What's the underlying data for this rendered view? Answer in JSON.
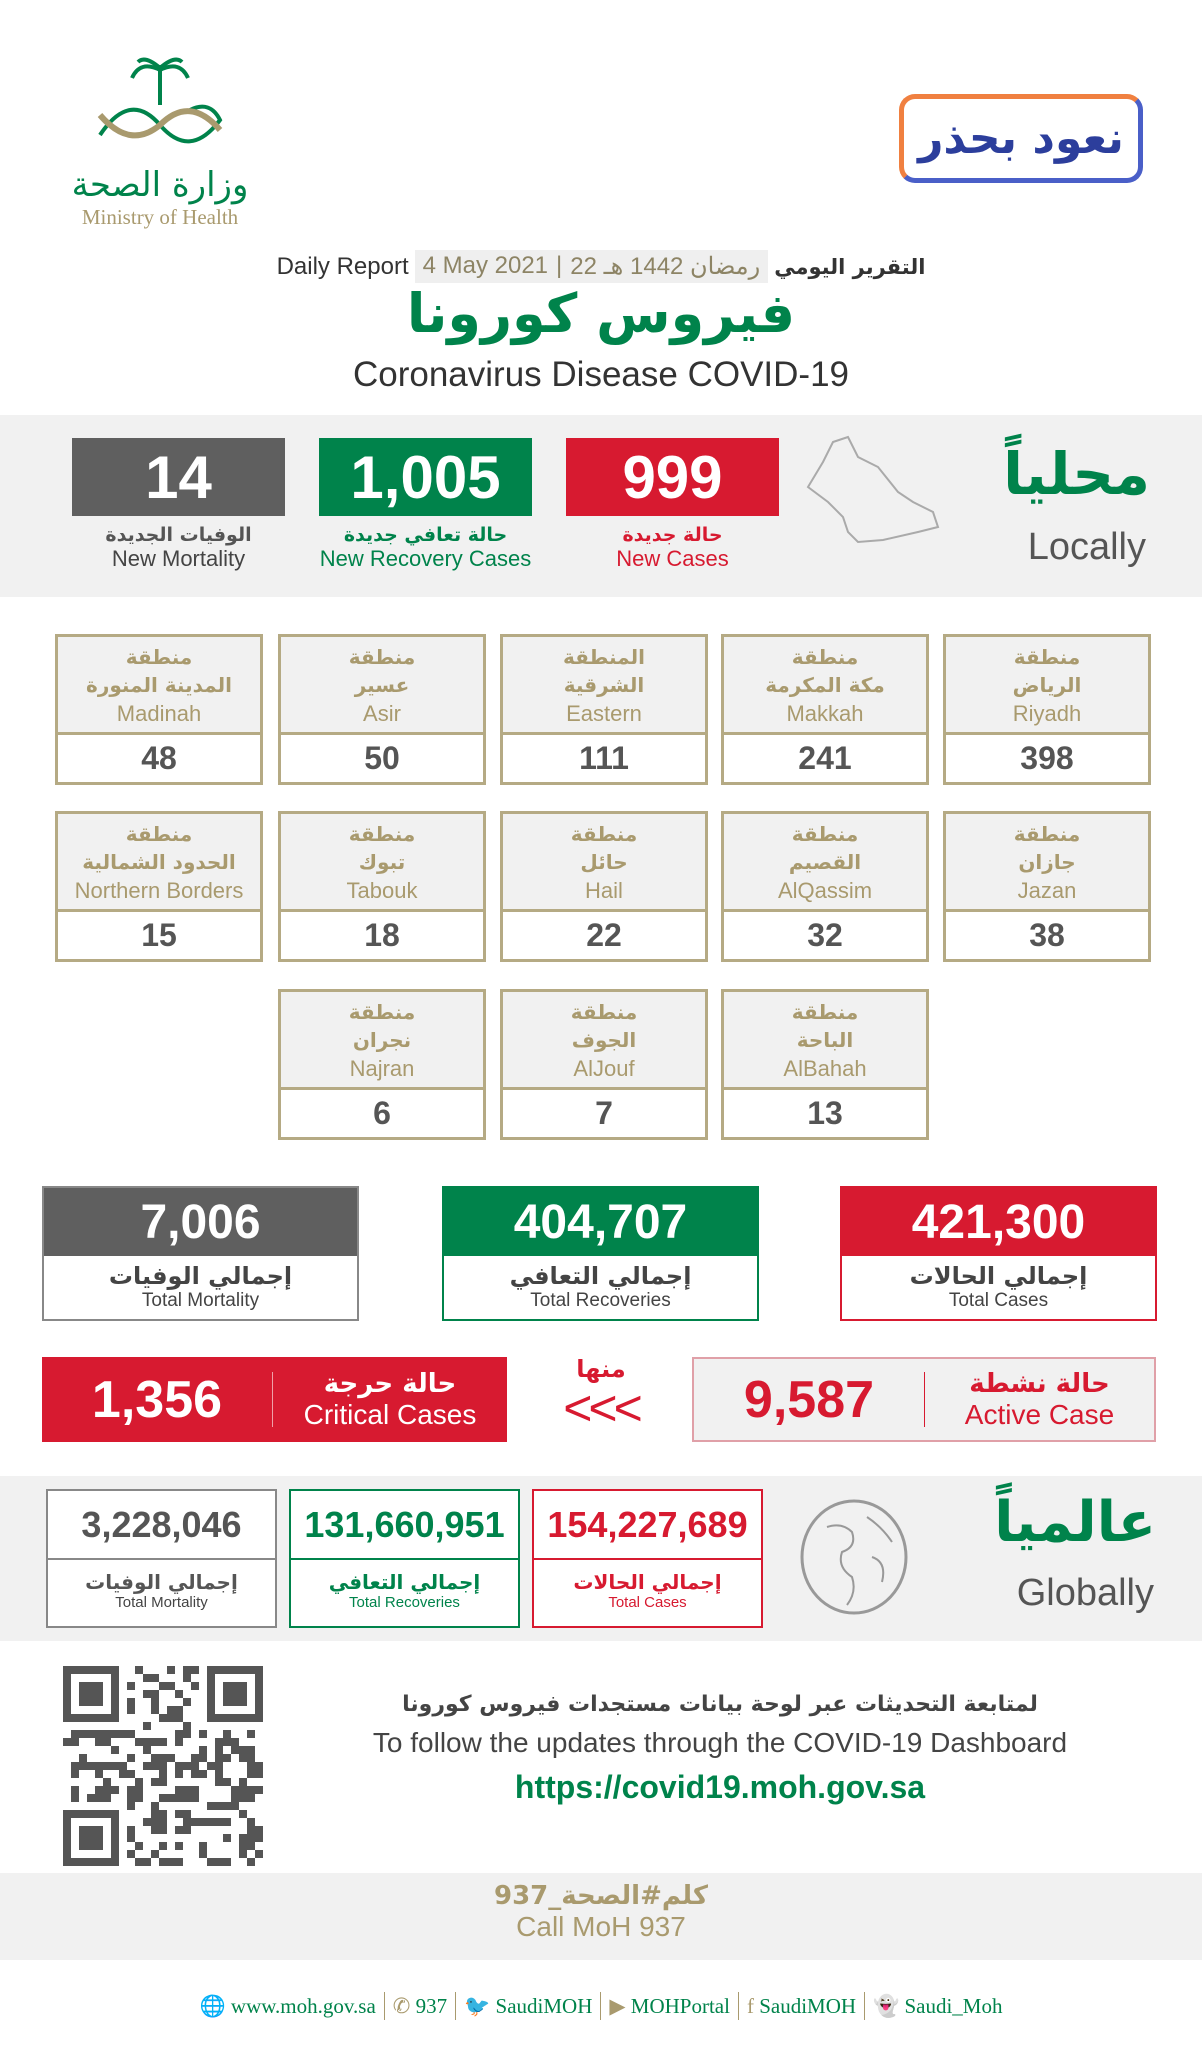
{
  "header": {
    "logo_ar": "وزارة الصحة",
    "logo_en": "Ministry of Health",
    "slogan_ar": "نعود بحذر",
    "daily_report_ar": "التقرير اليومي",
    "hijri_date": "22 رمضان 1442 هـ",
    "date": "4 May 2021",
    "daily_report_en": "Daily Report",
    "title_ar": "فيروس كورونا",
    "title_en": "Coronavirus Disease COVID-19"
  },
  "colors": {
    "red": "#d71a30",
    "green": "#00834b",
    "gray": "#5f5f5f",
    "gold": "#a99a6e"
  },
  "locally": {
    "title_ar": "محلياً",
    "title_en": "Locally",
    "new_cases": {
      "value": "999",
      "label_ar": "حالة جديدة",
      "label_en": "New Cases"
    },
    "new_recovery": {
      "value": "1,005",
      "label_ar": "حالة تعافي جديدة",
      "label_en": "New Recovery Cases"
    },
    "new_mortality": {
      "value": "14",
      "label_ar": "الوفيات الجديدة",
      "label_en": "New Mortality"
    }
  },
  "regions": [
    {
      "ar1": "منطقة",
      "ar2": "الرياض",
      "en": "Riyadh",
      "value": "398"
    },
    {
      "ar1": "منطقة",
      "ar2": "مكة المكرمة",
      "en": "Makkah",
      "value": "241"
    },
    {
      "ar1": "المنطقة",
      "ar2": "الشرقية",
      "en": "Eastern",
      "value": "111"
    },
    {
      "ar1": "منطقة",
      "ar2": "عسير",
      "en": "Asir",
      "value": "50"
    },
    {
      "ar1": "منطقة",
      "ar2": "المدينة المنورة",
      "en": "Madinah",
      "value": "48"
    },
    {
      "ar1": "منطقة",
      "ar2": "جازان",
      "en": "Jazan",
      "value": "38"
    },
    {
      "ar1": "منطقة",
      "ar2": "القصيم",
      "en": "AlQassim",
      "value": "32"
    },
    {
      "ar1": "منطقة",
      "ar2": "حائل",
      "en": "Hail",
      "value": "22"
    },
    {
      "ar1": "منطقة",
      "ar2": "تبوك",
      "en": "Tabouk",
      "value": "18"
    },
    {
      "ar1": "منطقة",
      "ar2": "الحدود الشمالية",
      "en": "Northern Borders",
      "value": "15"
    },
    {
      "ar1": "منطقة",
      "ar2": "الباحة",
      "en": "AlBahah",
      "value": "13"
    },
    {
      "ar1": "منطقة",
      "ar2": "الجوف",
      "en": "AlJouf",
      "value": "7"
    },
    {
      "ar1": "منطقة",
      "ar2": "نجران",
      "en": "Najran",
      "value": "6"
    }
  ],
  "totals": {
    "cases": {
      "value": "421,300",
      "label_ar": "إجمالي الحالات",
      "label_en": "Total Cases"
    },
    "recoveries": {
      "value": "404,707",
      "label_ar": "إجمالي التعافي",
      "label_en": "Total Recoveries"
    },
    "mortality": {
      "value": "7,006",
      "label_ar": "إجمالي الوفيات",
      "label_en": "Total Mortality"
    },
    "active": {
      "value": "9,587",
      "label_ar": "حالة نشطة",
      "label_en": "Active Case"
    },
    "of_which": "منها",
    "arrows": "<<<",
    "critical": {
      "value": "1,356",
      "label_ar": "حالة حرجة",
      "label_en": "Critical Cases"
    }
  },
  "globally": {
    "title_ar": "عالمياً",
    "title_en": "Globally",
    "cases": {
      "value": "154,227,689",
      "label_ar": "إجمالي الحالات",
      "label_en": "Total Cases"
    },
    "recoveries": {
      "value": "131,660,951",
      "label_ar": "إجمالي التعافي",
      "label_en": "Total Recoveries"
    },
    "mortality": {
      "value": "3,228,046",
      "label_ar": "إجمالي الوفيات",
      "label_en": "Total Mortality"
    }
  },
  "dashboard": {
    "text_ar": "لمتابعة التحديثات عبر لوحة بيانات مستجدات فيروس كورونا",
    "text_en": "To follow the updates through the COVID-19 Dashboard",
    "url": "https://covid19.moh.gov.sa"
  },
  "call": {
    "hashtag": "كلم#الصحة_937",
    "text_en": "Call MoH 937"
  },
  "footer": [
    {
      "icon": "globe-icon",
      "glyph": "🌐",
      "text": "www.moh.gov.sa"
    },
    {
      "icon": "phone-icon",
      "glyph": "✆",
      "text": "937"
    },
    {
      "icon": "twitter-icon",
      "glyph": "🐦",
      "text": "SaudiMOH"
    },
    {
      "icon": "youtube-icon",
      "glyph": "▶",
      "text": "MOHPortal"
    },
    {
      "icon": "facebook-icon",
      "glyph": "f",
      "text": "SaudiMOH"
    },
    {
      "icon": "snapchat-icon",
      "glyph": "👻",
      "text": "Saudi_Moh"
    }
  ]
}
